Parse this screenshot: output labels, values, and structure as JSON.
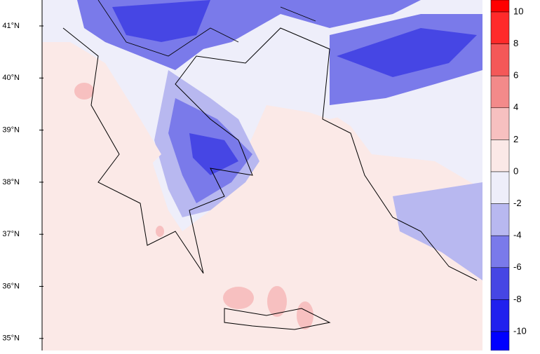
{
  "map": {
    "latitude_labels": [
      "41°N",
      "40°N",
      "39°N",
      "38°N",
      "37°N",
      "36°N",
      "35°N"
    ],
    "colorbar": {
      "labels": [
        10,
        8,
        6,
        4,
        2,
        0,
        -2,
        -4,
        -6,
        -8,
        -10
      ],
      "colors": [
        "#ff0000",
        "#ff2a2a",
        "#f45858",
        "#f38a8a",
        "#f7c0c0",
        "#fbe9e7",
        "#eeeefa",
        "#b8b8f0",
        "#7a7aea",
        "#4646e4",
        "#2020ee",
        "#0000ff"
      ]
    }
  }
}
